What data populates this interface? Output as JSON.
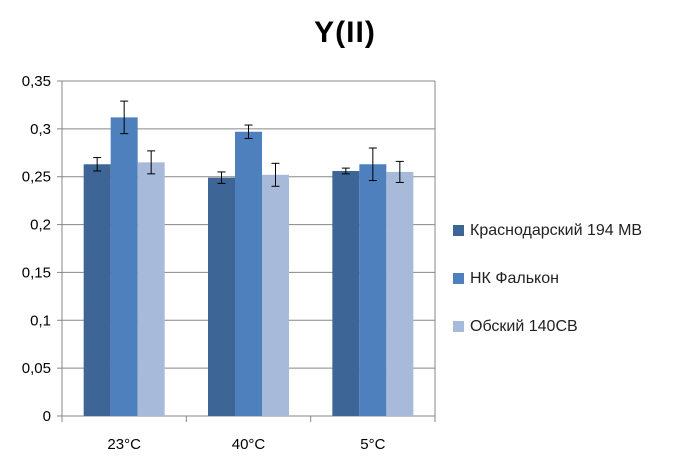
{
  "chart_data": {
    "type": "bar",
    "title": "Y(II)",
    "xlabel": "",
    "ylabel": "",
    "categories": [
      "23°C",
      "40°C",
      "5°C"
    ],
    "ylim": [
      0,
      0.35
    ],
    "yticks": [
      "0",
      "0,05",
      "0,1",
      "0,15",
      "0,2",
      "0,25",
      "0,3",
      "0,35"
    ],
    "ytick_values": [
      0,
      0.05,
      0.1,
      0.15,
      0.2,
      0.25,
      0.3,
      0.35
    ],
    "grid": true,
    "legend_position": "right",
    "series": [
      {
        "name": "Краснодарский 194 МВ",
        "color": "#3d6697",
        "values": [
          0.263,
          0.249,
          0.256
        ],
        "errors": [
          0.007,
          0.006,
          0.003
        ]
      },
      {
        "name": "НК Фалькон",
        "color": "#4e80bd",
        "values": [
          0.312,
          0.297,
          0.263
        ],
        "errors": [
          0.017,
          0.007,
          0.017
        ]
      },
      {
        "name": "Обский 140СВ",
        "color": "#a8bad9",
        "values": [
          0.265,
          0.252,
          0.255
        ],
        "errors": [
          0.012,
          0.012,
          0.011
        ]
      }
    ]
  }
}
